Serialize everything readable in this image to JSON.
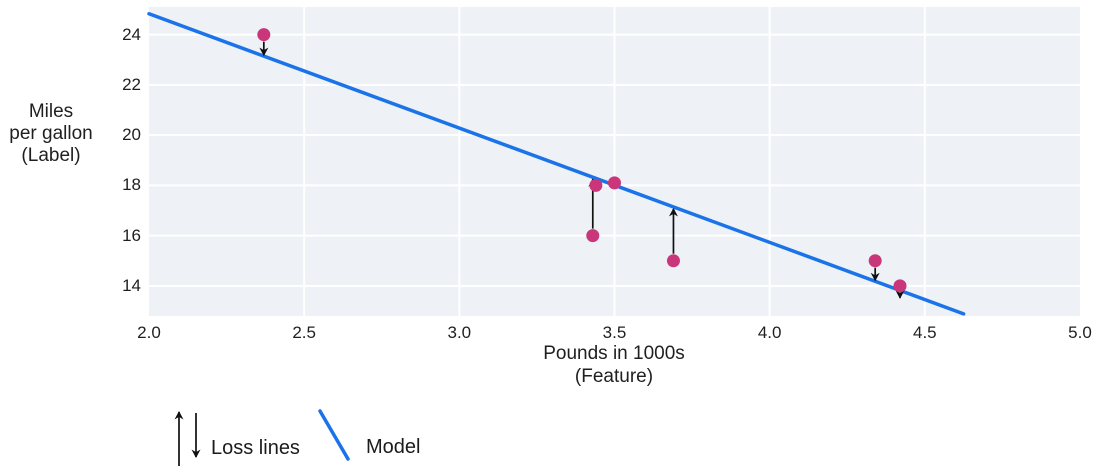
{
  "figure": {
    "background": "#ffffff",
    "plot_background": "#eef1f6",
    "grid_color": "#ffffff",
    "text_color": "#1f1f1f"
  },
  "chart_data": {
    "type": "scatter",
    "title": "",
    "xlabel_lines": [
      "Pounds in 1000s",
      "(Feature)"
    ],
    "ylabel_lines": [
      "Miles",
      "per gallon",
      "(Label)"
    ],
    "xlim": [
      2.0,
      5.0
    ],
    "ylim": [
      12.8,
      25.1
    ],
    "xticks": [
      2.0,
      2.5,
      3.0,
      3.5,
      4.0,
      4.5,
      5.0
    ],
    "xtick_labels": [
      "2.0",
      "2.5",
      "3.0",
      "3.5",
      "4.0",
      "4.5",
      "5.0"
    ],
    "yticks": [
      14,
      16,
      18,
      20,
      22,
      24
    ],
    "ytick_labels": [
      "14",
      "16",
      "18",
      "20",
      "22",
      "24"
    ],
    "grid": true,
    "legend_position": "bottom-left",
    "point_color": "#c9367a",
    "point_radius": 6.5,
    "arrow_color": "#111111",
    "points": [
      {
        "x": 2.37,
        "y": 24
      },
      {
        "x": 3.44,
        "y": 18
      },
      {
        "x": 3.5,
        "y": 18.1
      },
      {
        "x": 3.43,
        "y": 16
      },
      {
        "x": 3.69,
        "y": 15
      },
      {
        "x": 4.34,
        "y": 15
      },
      {
        "x": 4.42,
        "y": 14
      }
    ],
    "model_line": {
      "slope": -4.55,
      "intercept": 33.93,
      "x_start": 2.0,
      "x_end": 4.625,
      "color": "#1a73e8",
      "width": 3.5
    },
    "loss_arrows": [
      {
        "x": 2.37,
        "from_y": 24,
        "direction": "down"
      },
      {
        "x": 3.43,
        "from_y": 16,
        "direction": "up"
      },
      {
        "x": 3.69,
        "from_y": 15,
        "direction": "up"
      },
      {
        "x": 4.34,
        "from_y": 15,
        "direction": "down"
      },
      {
        "x": 4.42,
        "from_y": 14,
        "direction": "down"
      }
    ]
  },
  "legend": {
    "loss_label": "Loss lines",
    "model_label": "Model"
  }
}
